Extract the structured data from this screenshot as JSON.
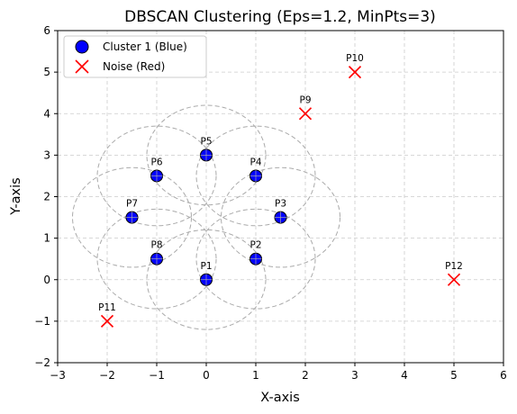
{
  "chart_data": {
    "type": "scatter",
    "title": "DBSCAN Clustering (Eps=1.2, MinPts=3)",
    "xlabel": "X-axis",
    "ylabel": "Y-axis",
    "xlim": [
      -3,
      6
    ],
    "ylim": [
      -2,
      6
    ],
    "xticks": [
      "−3",
      "−2",
      "−1",
      "0",
      "1",
      "2",
      "3",
      "4",
      "5",
      "6"
    ],
    "yticks": [
      "−2",
      "−1",
      "0",
      "1",
      "2",
      "3",
      "4",
      "5",
      "6"
    ],
    "grid": true,
    "eps": 1.2,
    "legend": {
      "placement": "top-left",
      "entries": [
        {
          "label": "Cluster 1 (Blue)",
          "marker": "circle",
          "color": "#0000ff"
        },
        {
          "label": "Noise (Red)",
          "marker": "x",
          "color": "#ff0000"
        }
      ]
    },
    "series": [
      {
        "name": "Cluster 1 (Blue)",
        "color": "#0000ff",
        "points": [
          {
            "label": "P1",
            "x": 0,
            "y": 0
          },
          {
            "label": "P2",
            "x": 1,
            "y": 0.5
          },
          {
            "label": "P3",
            "x": 1.5,
            "y": 1.5
          },
          {
            "label": "P4",
            "x": 1,
            "y": 2.5
          },
          {
            "label": "P5",
            "x": 0,
            "y": 3
          },
          {
            "label": "P6",
            "x": -1,
            "y": 2.5
          },
          {
            "label": "P7",
            "x": -1.5,
            "y": 1.5
          },
          {
            "label": "P8",
            "x": -1,
            "y": 0.5
          }
        ]
      },
      {
        "name": "Noise (Red)",
        "color": "#ff0000",
        "points": [
          {
            "label": "P9",
            "x": 2,
            "y": 4
          },
          {
            "label": "P10",
            "x": 3,
            "y": 5
          },
          {
            "label": "P11",
            "x": -2,
            "y": -1
          },
          {
            "label": "P12",
            "x": 5,
            "y": 0
          }
        ]
      }
    ]
  }
}
